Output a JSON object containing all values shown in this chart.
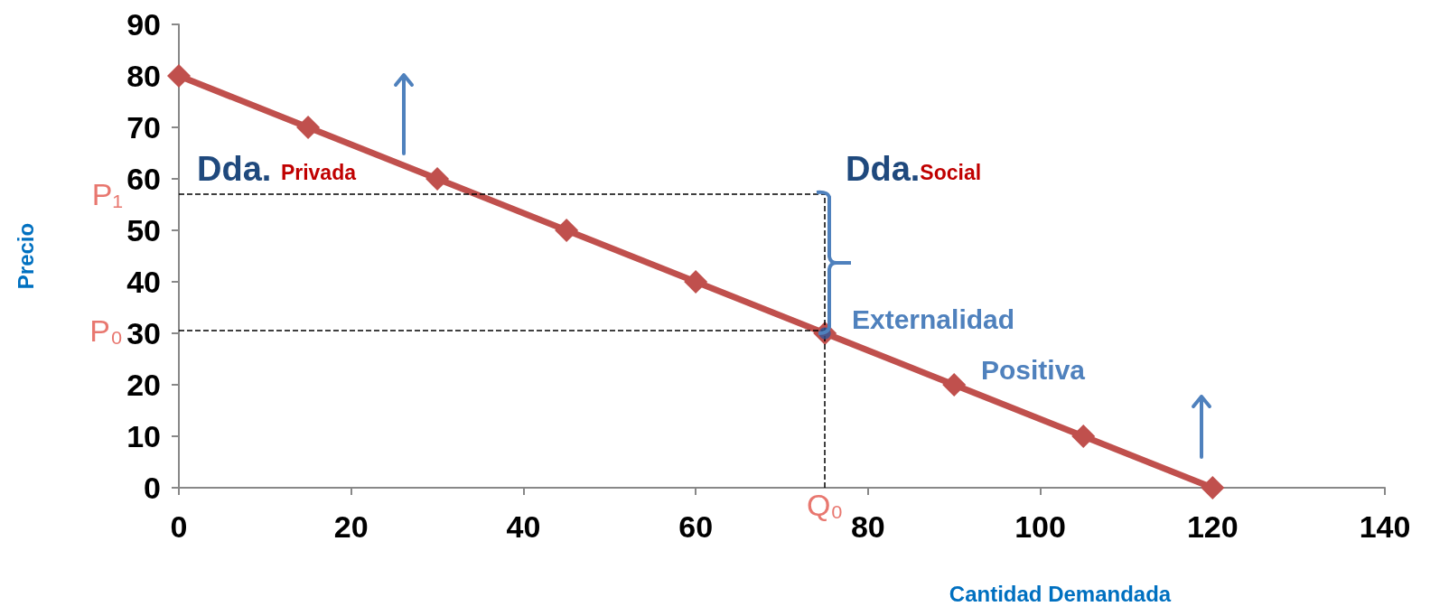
{
  "chart_data": {
    "type": "line",
    "xlabel": "Cantidad Demandada",
    "ylabel": "Precio",
    "xlim": [
      0,
      140
    ],
    "xticks": [
      0,
      20,
      40,
      60,
      80,
      100,
      120,
      140
    ],
    "ylim": [
      0,
      90
    ],
    "yticks": [
      0,
      10,
      20,
      30,
      40,
      50,
      60,
      70,
      80,
      90
    ],
    "series": [
      {
        "color": "#c0504d",
        "x": [
          0,
          15,
          30,
          45,
          60,
          75,
          90,
          105,
          120
        ],
        "values": [
          80,
          70,
          60,
          50,
          40,
          30,
          20,
          10,
          0
        ]
      },
      {
        "type": "scatter",
        "marker": "circle",
        "color": "#2f5597",
        "x": [
          75
        ],
        "values": [
          30
        ]
      }
    ],
    "marker": "diamond",
    "grid": false,
    "ref_lines": [
      {
        "axis": "y",
        "value": 57,
        "label": "P₁",
        "color": "#000000",
        "line_style": "dashed"
      },
      {
        "axis": "y",
        "value": 30.5,
        "label": "P₀",
        "color": "#000000",
        "line_style": "dashed"
      },
      {
        "axis": "x",
        "value": 75,
        "label": "Q₀",
        "color": "#000000",
        "line_style": "dashed"
      }
    ],
    "annotations": [
      "Dda. Privada",
      "Dda.Social",
      "Externalidad Positiva"
    ]
  }
}
